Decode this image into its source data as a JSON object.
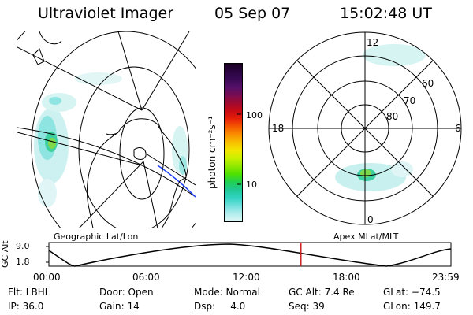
{
  "header": {
    "instrument": "Ultraviolet Imager",
    "date": "05 Sep 07",
    "time": "15:02:48 UT"
  },
  "colorbar": {
    "label": "photon cm⁻²s⁻¹",
    "ticks": [
      "100",
      "10"
    ],
    "colors": [
      "#1a0025",
      "#2a0440",
      "#3a0a55",
      "#55106a",
      "#7a0c50",
      "#a00a2e",
      "#c80a14",
      "#e62008",
      "#f55a00",
      "#fa9000",
      "#f8c000",
      "#f2e600",
      "#c8f000",
      "#90e800",
      "#4ee000",
      "#20d050",
      "#20c896",
      "#30d2c0",
      "#70e0dc",
      "#b0ecec",
      "#e0f6f6"
    ]
  },
  "left_map": {
    "caption": "Geographic Lat/Lon"
  },
  "right_map": {
    "caption": "Apex MLat/MLT",
    "lat_labels": [
      "60",
      "70",
      "80"
    ],
    "mlt_labels": [
      "12",
      "18",
      "6",
      "0"
    ]
  },
  "timeline": {
    "ylabel": "GC Alt",
    "ymax": "9.0",
    "ymin": "1.8",
    "ticks": [
      "00:00",
      "06:00",
      "12:00",
      "18:00",
      "23:59"
    ],
    "current_fraction": 0.627
  },
  "footer": {
    "flt": "Flt: LBHL",
    "ip": "IP: 36.0",
    "door": "Door: Open",
    "gain": "Gain: 14",
    "mode": "Mode: Normal",
    "dsp": "Dsp:     4.0",
    "gcalt": "GC Alt: 7.4 Re",
    "seq": "Seq: 39",
    "glat": "GLat: −74.5",
    "glon": "GLon: 149.7"
  }
}
